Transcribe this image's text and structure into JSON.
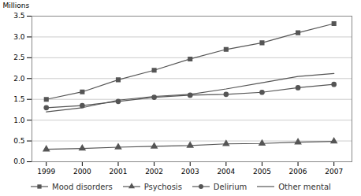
{
  "chart_data": {
    "type": "line",
    "ylabel": "Millions",
    "x": [
      1999,
      2000,
      2001,
      2002,
      2003,
      2004,
      2005,
      2006,
      2007
    ],
    "series": [
      {
        "name": "Mood disorders",
        "color": "#555555",
        "marker": "square",
        "values": [
          1.5,
          1.68,
          1.97,
          2.2,
          2.47,
          2.7,
          2.86,
          3.1,
          3.32
        ]
      },
      {
        "name": "Psychosis",
        "color": "#555555",
        "marker": "triangle",
        "values": [
          0.3,
          0.32,
          0.35,
          0.37,
          0.39,
          0.43,
          0.44,
          0.47,
          0.49
        ]
      },
      {
        "name": "Delirium",
        "color": "#555555",
        "marker": "circle",
        "values": [
          1.3,
          1.35,
          1.45,
          1.55,
          1.6,
          1.62,
          1.67,
          1.78,
          1.86
        ]
      },
      {
        "name": "Other mental",
        "color": "#555555",
        "marker": "none",
        "values": [
          1.2,
          1.3,
          1.48,
          1.57,
          1.62,
          1.75,
          1.9,
          2.05,
          2.12
        ]
      }
    ],
    "xlim": [
      1998.6,
      2007.5
    ],
    "xticks": [
      1999,
      2000,
      2001,
      2002,
      2003,
      2004,
      2005,
      2006,
      2007
    ],
    "ylim": [
      0.0,
      3.5
    ],
    "yticks": [
      {
        "value": 0,
        "label": "0.0"
      },
      0.5,
      {
        "value": 1,
        "label": "1.0"
      },
      1.5,
      {
        "value": 2,
        "label": "2.0"
      },
      2.5,
      {
        "value": 3,
        "label": "3.0"
      },
      3.5
    ],
    "grid": "y",
    "legend": "bottom"
  }
}
